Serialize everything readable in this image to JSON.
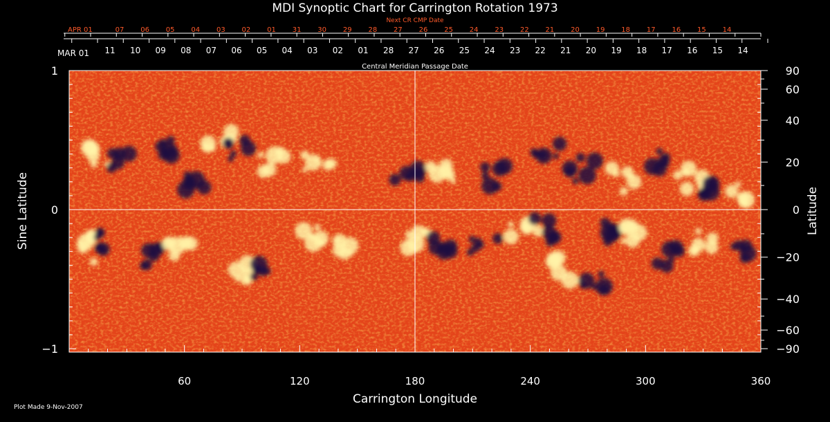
{
  "chart_data": {
    "type": "heatmap",
    "title": "MDI Synoptic Chart for Carrington Rotation 1973",
    "xlabel": "Carrington Longitude",
    "ylabel_left": "Sine Latitude",
    "ylabel_right": "Latitude",
    "top_axis_title": "Central Meridian Passage Date",
    "next_cr_title": "Next CR CMP Date",
    "xlim": [
      0,
      360
    ],
    "ylim": [
      -1,
      1
    ],
    "x_ticks": [
      60,
      120,
      180,
      240,
      300,
      360
    ],
    "y_ticks_left": [
      "1",
      "0",
      "−1"
    ],
    "y_ticks_right": [
      "90",
      "60",
      "40",
      "20",
      "0",
      "−20",
      "−40",
      "−60",
      "−90"
    ],
    "cmp_dates": [
      "MAR 01",
      "11",
      "10",
      "09",
      "08",
      "07",
      "06",
      "05",
      "04",
      "03",
      "02",
      "01",
      "28",
      "27",
      "26",
      "25",
      "24",
      "23",
      "22",
      "21",
      "20",
      "19",
      "18",
      "17",
      "16",
      "15",
      "14"
    ],
    "next_cr_dates": [
      "APR 01",
      "07",
      "06",
      "05",
      "04",
      "03",
      "02",
      "01",
      "31",
      "30",
      "29",
      "28",
      "27",
      "26",
      "25",
      "24",
      "23",
      "22",
      "21",
      "20",
      "19",
      "18",
      "17",
      "16",
      "15",
      "14"
    ],
    "colors": {
      "background": "#000000",
      "field_base": "#e8461c",
      "positive": "#fff2a0",
      "negative": "#1a1040",
      "grid": "#ffffff",
      "next_cr": "#ff5a2a"
    },
    "grid": true
  },
  "footer": {
    "plot_made": "Plot Made  9-Nov-2007"
  }
}
